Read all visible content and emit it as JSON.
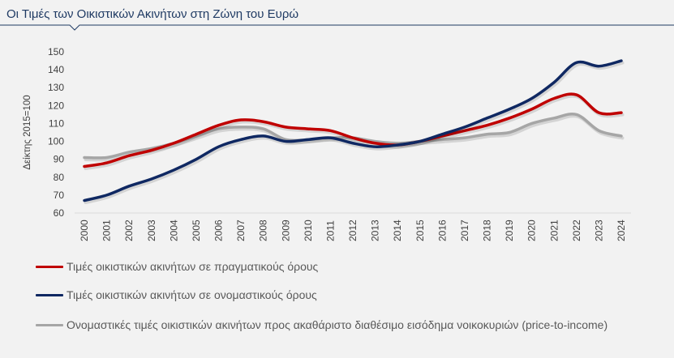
{
  "title": "Οι Τιμές των Οικιστικών Ακινήτων στη Ζώνη του Ευρώ",
  "colors": {
    "title_rule": "#1f3a63",
    "background": "#f2f2f2"
  },
  "chart_data": {
    "type": "line",
    "title": "Οι Τιμές των Οικιστικών Ακινήτων στη Ζώνη του Ευρώ",
    "ylabel": "Δείκτης 2015=100",
    "xlabel": "",
    "ylim": [
      60,
      150
    ],
    "yticks": [
      60,
      70,
      80,
      90,
      100,
      110,
      120,
      130,
      140,
      150
    ],
    "x": [
      "2000",
      "2001",
      "2002",
      "2003",
      "2004",
      "2005",
      "2006",
      "2007",
      "2008",
      "2009",
      "2010",
      "2011",
      "2012",
      "2013",
      "2014",
      "2015",
      "2016",
      "2017",
      "2018",
      "2019",
      "2020",
      "2021",
      "2022",
      "2023",
      "2024"
    ],
    "grid": false,
    "legend_position": "bottom",
    "series": [
      {
        "name": "Τιμές οικιστικών ακινήτων σε πραγματικούς όρους",
        "color": "#c00000",
        "values": [
          86,
          88,
          92,
          95,
          99,
          104,
          109,
          112,
          111,
          108,
          107,
          106,
          102,
          99,
          98,
          100,
          103,
          106,
          109,
          113,
          118,
          124,
          126,
          116,
          116
        ]
      },
      {
        "name": "Τιμές οικιστικών ακινήτων σε ονομαστικούς όρους",
        "color": "#0f2862",
        "values": [
          67,
          70,
          75,
          79,
          84,
          90,
          97,
          101,
          103,
          100,
          101,
          102,
          99,
          97,
          98,
          100,
          104,
          108,
          113,
          118,
          124,
          133,
          144,
          142,
          145
        ]
      },
      {
        "name": "Ονομαστικές τιμές οικιστικών ακινήτων προς ακαθάριστο διαθέσιμο εισόδημα νοικοκυριών (price-to-income)",
        "color": "#a6a6a6",
        "values": [
          91,
          91,
          94,
          96,
          99,
          103,
          107,
          108,
          107,
          101,
          101,
          102,
          102,
          100,
          99,
          100,
          101,
          102,
          104,
          105,
          110,
          113,
          115,
          106,
          103
        ]
      }
    ]
  }
}
